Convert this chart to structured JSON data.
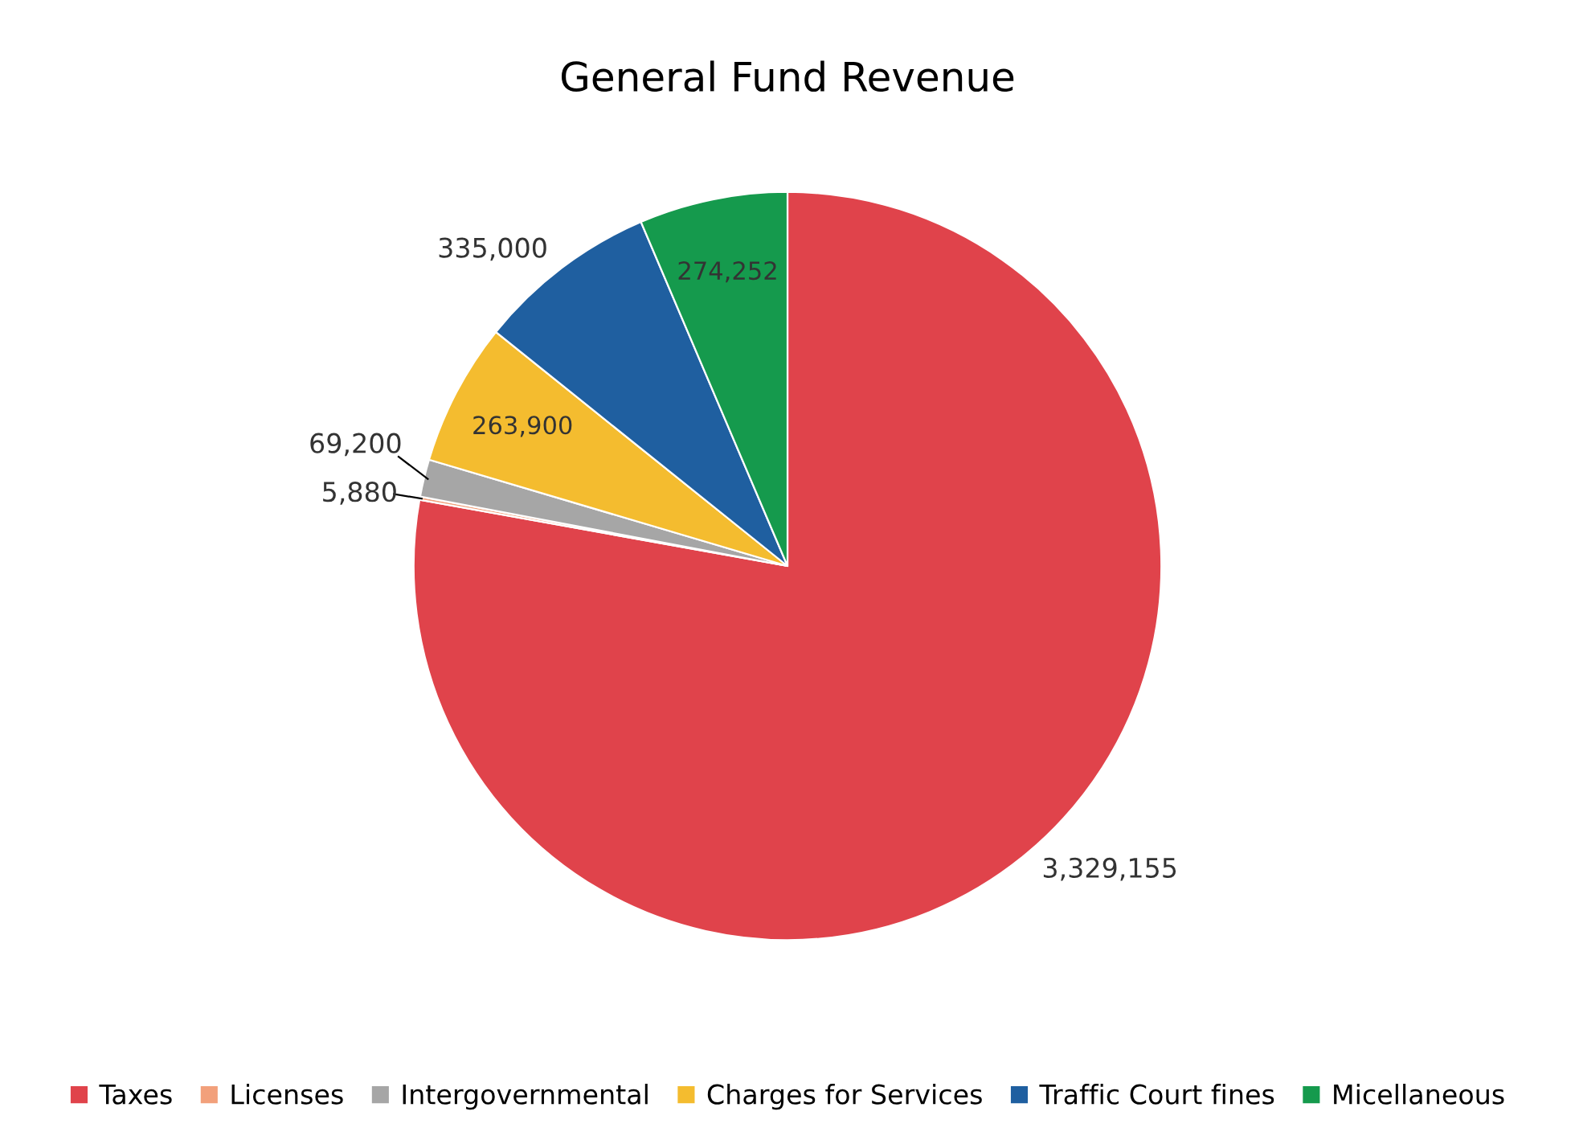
{
  "chart_data": {
    "type": "pie",
    "title": "General Fund Revenue",
    "categories": [
      "Taxes",
      "Licenses",
      "Intergovernmental",
      "Charges for Services",
      "Traffic Court fines",
      "Micellaneous"
    ],
    "values": [
      3329155,
      5880,
      69200,
      263900,
      335000,
      274252
    ],
    "colors": [
      "#e0434b",
      "#f2a07b",
      "#a6a6a6",
      "#f4bc2f",
      "#1f5fa0",
      "#159a4d"
    ],
    "value_labels": [
      "3,329,155",
      "5,880",
      "69,200",
      "263,900",
      "335,000",
      "274,252"
    ],
    "legend": "bottom"
  }
}
